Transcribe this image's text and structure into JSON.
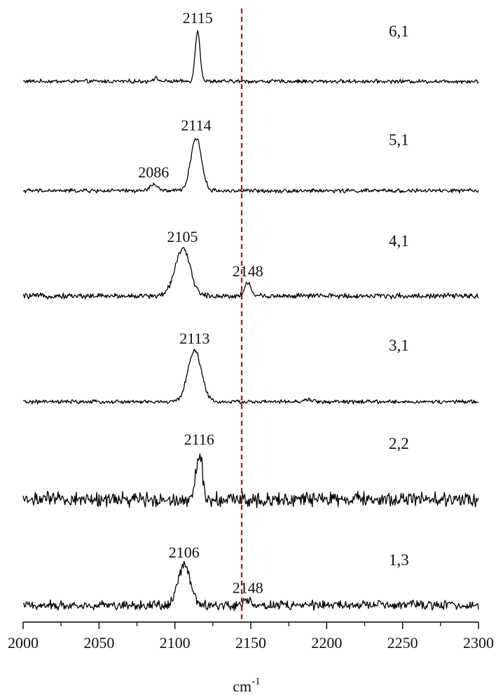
{
  "chart_data": {
    "type": "line",
    "xlabel": "cm",
    "xlabel_superscript": "-1",
    "xlim": [
      2000,
      2300
    ],
    "x_ticks": [
      2000,
      2050,
      2100,
      2150,
      2200,
      2250,
      2300
    ],
    "x_tick_labels": [
      "2000",
      "2050",
      "2100",
      "2150",
      "2200",
      "2250",
      "2300"
    ],
    "reference_line": {
      "x": 2144,
      "color": "#a01818",
      "style": "dashed"
    },
    "series": [
      {
        "name": "6,1",
        "peaks": [
          {
            "position": 2115,
            "height": 1.0,
            "width": 1.6,
            "label": "2115"
          },
          {
            "position": 2087,
            "height": 0.06,
            "width": 2.0,
            "label": ""
          }
        ],
        "noise": 0.03
      },
      {
        "name": "5,1",
        "peaks": [
          {
            "position": 2114,
            "height": 1.0,
            "width": 3.5,
            "label": "2114"
          },
          {
            "position": 2086,
            "height": 0.12,
            "width": 2.5,
            "label": "2086"
          }
        ],
        "noise": 0.03
      },
      {
        "name": "4,1",
        "peaks": [
          {
            "position": 2105,
            "height": 1.0,
            "width": 5.0,
            "label": "2105"
          },
          {
            "position": 2148,
            "height": 0.27,
            "width": 2.2,
            "label": "2148"
          }
        ],
        "noise": 0.045
      },
      {
        "name": "3,1",
        "peaks": [
          {
            "position": 2113,
            "height": 1.0,
            "width": 4.5,
            "label": "2113"
          },
          {
            "position": 2188,
            "height": 0.04,
            "width": 3.0,
            "label": ""
          }
        ],
        "noise": 0.03
      },
      {
        "name": "2,2",
        "peaks": [
          {
            "position": 2116,
            "height": 1.0,
            "width": 2.0,
            "label": "2116"
          }
        ],
        "noise": 0.12
      },
      {
        "name": "1,3",
        "peaks": [
          {
            "position": 2106,
            "height": 1.0,
            "width": 4.0,
            "label": "2106"
          },
          {
            "position": 2148,
            "height": 0.13,
            "width": 2.2,
            "label": "2148"
          }
        ],
        "noise": 0.09
      }
    ]
  }
}
